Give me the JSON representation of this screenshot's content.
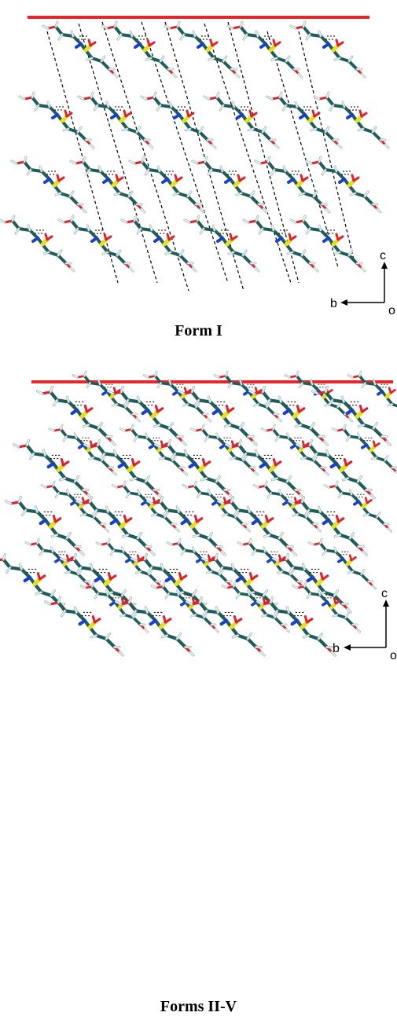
{
  "figure": {
    "panels": [
      {
        "caption": "Form I",
        "axis_labels": {
          "vertical": "c",
          "horizontal": "b",
          "origin": "o"
        },
        "reference_line_color": "#e8252a",
        "has_dashed_lines": true
      },
      {
        "caption": "Forms II-V",
        "axis_labels": {
          "vertical": "c",
          "horizontal": "b",
          "origin": "o"
        },
        "reference_line_color": "#e8252a",
        "has_dashed_lines": false
      }
    ],
    "atom_colors": {
      "carbon": "#1f5c5a",
      "hydrogen": "#e8f2f2",
      "oxygen": "#e0202a",
      "nitrogen": "#1a3fcf",
      "sulfur": "#e6e020"
    }
  }
}
